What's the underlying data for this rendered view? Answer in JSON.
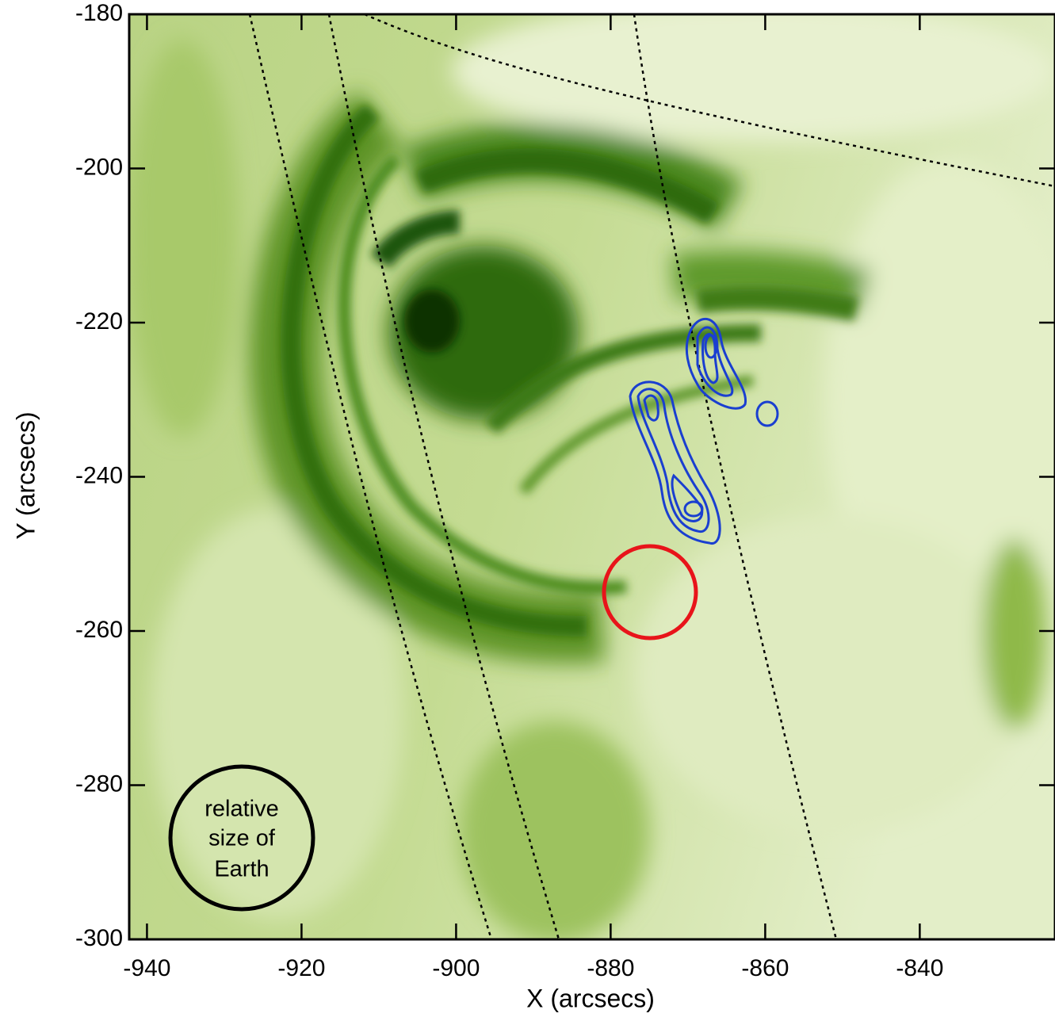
{
  "chart_data": {
    "type": "image",
    "xlabel": "X (arcsecs)",
    "ylabel": "Y (arcsecs)",
    "xlim": [
      -942.3,
      -822.5
    ],
    "ylim": [
      -300,
      -180
    ],
    "xticks": [
      -940,
      -920,
      -900,
      -880,
      -860,
      -840
    ],
    "yticks": [
      -180,
      -200,
      -220,
      -240,
      -260,
      -280,
      -300
    ],
    "annotation": [
      "relative",
      "size of",
      "Earth"
    ]
  }
}
